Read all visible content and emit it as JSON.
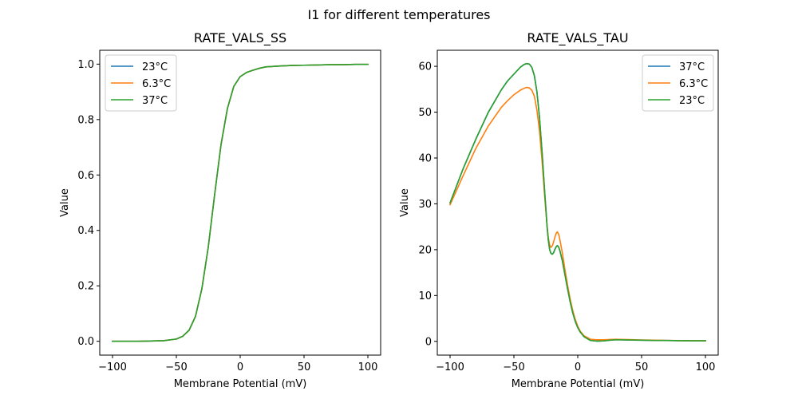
{
  "figure": {
    "suptitle": "I1 for different temperatures"
  },
  "chart_data": [
    {
      "type": "line",
      "title": "RATE_VALS_SS",
      "xlabel": "Membrane Potential (mV)",
      "ylabel": "Value",
      "xlim": [
        -110,
        110
      ],
      "ylim": [
        -0.05,
        1.05
      ],
      "xticks": [
        -100,
        -50,
        0,
        50,
        100
      ],
      "xtick_labels": [
        "−100",
        "−50",
        "0",
        "50",
        "100"
      ],
      "yticks": [
        0.0,
        0.2,
        0.4,
        0.6,
        0.8,
        1.0
      ],
      "ytick_labels": [
        "0.0",
        "0.2",
        "0.4",
        "0.6",
        "0.8",
        "1.0"
      ],
      "grid": false,
      "legend_position": "upper-left",
      "x": [
        -100,
        -80,
        -60,
        -50,
        -45,
        -40,
        -35,
        -30,
        -25,
        -20,
        -15,
        -10,
        -5,
        0,
        5,
        10,
        15,
        20,
        30,
        40,
        50,
        60,
        70,
        80,
        90,
        100
      ],
      "series": [
        {
          "name": "23°C",
          "color": "#1f77b4",
          "values": [
            0.0,
            0.0,
            0.002,
            0.008,
            0.018,
            0.04,
            0.09,
            0.19,
            0.34,
            0.53,
            0.71,
            0.84,
            0.92,
            0.955,
            0.97,
            0.978,
            0.985,
            0.99,
            0.993,
            0.995,
            0.996,
            0.997,
            0.998,
            0.998,
            0.999,
            0.999
          ]
        },
        {
          "name": "6.3°C",
          "color": "#ff7f0e",
          "values": [
            0.0,
            0.0,
            0.002,
            0.008,
            0.018,
            0.04,
            0.09,
            0.19,
            0.34,
            0.53,
            0.71,
            0.84,
            0.92,
            0.955,
            0.97,
            0.978,
            0.985,
            0.99,
            0.993,
            0.995,
            0.996,
            0.997,
            0.998,
            0.998,
            0.999,
            0.999
          ]
        },
        {
          "name": "37°C",
          "color": "#2ca02c",
          "values": [
            0.0,
            0.0,
            0.002,
            0.008,
            0.018,
            0.04,
            0.09,
            0.19,
            0.34,
            0.53,
            0.71,
            0.84,
            0.92,
            0.955,
            0.97,
            0.978,
            0.985,
            0.99,
            0.993,
            0.995,
            0.996,
            0.997,
            0.998,
            0.998,
            0.999,
            0.999
          ]
        }
      ]
    },
    {
      "type": "line",
      "title": "RATE_VALS_TAU",
      "xlabel": "Membrane Potential (mV)",
      "ylabel": "Value",
      "xlim": [
        -110,
        110
      ],
      "ylim": [
        -3,
        63.5
      ],
      "xticks": [
        -100,
        -50,
        0,
        50,
        100
      ],
      "xtick_labels": [
        "−100",
        "−50",
        "0",
        "50",
        "100"
      ],
      "yticks": [
        0,
        10,
        20,
        30,
        40,
        50,
        60
      ],
      "ytick_labels": [
        "0",
        "10",
        "20",
        "30",
        "40",
        "50",
        "60"
      ],
      "grid": false,
      "legend_position": "upper-right",
      "x": [
        -100,
        -90,
        -80,
        -70,
        -60,
        -55,
        -50,
        -45,
        -42,
        -40,
        -38,
        -36,
        -34,
        -32,
        -30,
        -28,
        -26,
        -24,
        -23,
        -22,
        -21,
        -20,
        -19,
        -18,
        -17,
        -16,
        -15,
        -14,
        -12,
        -10,
        -8,
        -6,
        -4,
        -2,
        0,
        2,
        5,
        10,
        15,
        20,
        25,
        30,
        40,
        50,
        60,
        70,
        80,
        90,
        100
      ],
      "series": [
        {
          "name": "37°C",
          "color": "#1f77b4",
          "values": [
            30.2,
            37.5,
            44.0,
            50.0,
            54.8,
            56.8,
            58.3,
            59.8,
            60.4,
            60.6,
            60.5,
            59.8,
            58.0,
            54.5,
            49.0,
            41.5,
            33.0,
            25.0,
            22.0,
            20.0,
            19.2,
            19.0,
            19.3,
            20.0,
            20.6,
            20.9,
            20.6,
            19.8,
            17.5,
            14.5,
            11.5,
            8.7,
            6.3,
            4.4,
            3.0,
            2.0,
            1.0,
            0.2,
            0.05,
            0.1,
            0.25,
            0.35,
            0.3,
            0.25,
            0.2,
            0.18,
            0.15,
            0.13,
            0.12
          ]
        },
        {
          "name": "6.3°C",
          "color": "#ff7f0e",
          "values": [
            29.8,
            36.0,
            42.0,
            47.0,
            51.0,
            52.5,
            53.8,
            54.8,
            55.2,
            55.4,
            55.3,
            54.8,
            53.5,
            50.5,
            46.0,
            39.5,
            32.0,
            25.0,
            22.5,
            21.0,
            20.5,
            20.8,
            21.6,
            22.6,
            23.5,
            23.9,
            23.4,
            22.2,
            19.2,
            15.6,
            12.3,
            9.3,
            6.8,
            4.8,
            3.3,
            2.2,
            1.2,
            0.45,
            0.35,
            0.35,
            0.4,
            0.45,
            0.38,
            0.3,
            0.25,
            0.2,
            0.17,
            0.14,
            0.12
          ]
        },
        {
          "name": "23°C",
          "color": "#2ca02c",
          "values": [
            30.2,
            37.5,
            44.0,
            50.0,
            54.8,
            56.8,
            58.3,
            59.8,
            60.4,
            60.6,
            60.5,
            59.8,
            58.0,
            54.5,
            49.0,
            41.5,
            33.0,
            25.0,
            22.0,
            20.0,
            19.2,
            19.0,
            19.3,
            20.0,
            20.6,
            20.9,
            20.6,
            19.8,
            17.5,
            14.5,
            11.5,
            8.7,
            6.3,
            4.4,
            3.0,
            2.0,
            1.0,
            0.2,
            0.05,
            0.1,
            0.25,
            0.35,
            0.3,
            0.25,
            0.2,
            0.18,
            0.15,
            0.13,
            0.12
          ]
        }
      ]
    }
  ]
}
